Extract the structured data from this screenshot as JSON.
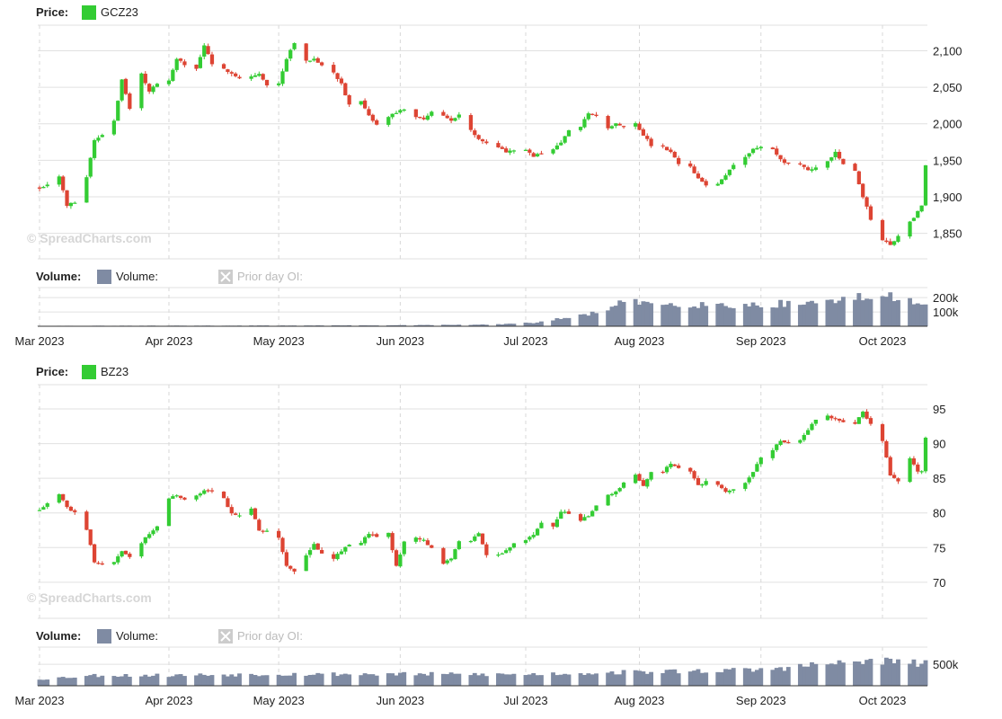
{
  "watermark": "© SpreadCharts.com",
  "labels": {
    "price": "Price:",
    "volume": "Volume:",
    "volume_series": "Volume:",
    "prior_oi": "Prior day OI:"
  },
  "colors": {
    "up": "#33cc33",
    "down": "#dd4433",
    "volume": "#7f8ba3",
    "grid": "#e0e0e0"
  },
  "x_axis": {
    "ticks": [
      "Mar 2023",
      "Apr 2023",
      "May 2023",
      "Jun 2023",
      "Jul 2023",
      "Aug 2023",
      "Sep 2023",
      "Oct 2023"
    ]
  },
  "chart_data": [
    {
      "type": "candlestick",
      "symbol": "GCZ23",
      "x_range": [
        "2023-03-01",
        "2023-10-13"
      ],
      "ylim": [
        1815,
        2135
      ],
      "yticks": [
        "2,100",
        "2,050",
        "2,000",
        "1,950",
        "1,900",
        "1,850"
      ],
      "ytick_values": [
        2100,
        2050,
        2000,
        1950,
        1900,
        1850
      ],
      "volume_ticks": [
        "200k",
        "100k"
      ],
      "volume_tick_values": [
        200000,
        100000
      ],
      "volume_max": 270000,
      "close_anchors": [
        [
          "2023-03-01",
          1912
        ],
        [
          "2023-03-03",
          1918
        ],
        [
          "2023-03-06",
          1928
        ],
        [
          "2023-03-08",
          1888
        ],
        [
          "2023-03-10",
          1893
        ],
        [
          "2023-03-13",
          1928
        ],
        [
          "2023-03-15",
          1978
        ],
        [
          "2023-03-17",
          1985
        ],
        [
          "2023-03-20",
          2005
        ],
        [
          "2023-03-22",
          2060
        ],
        [
          "2023-03-24",
          2020
        ],
        [
          "2023-03-27",
          2068
        ],
        [
          "2023-03-29",
          2045
        ],
        [
          "2023-03-31",
          2055
        ],
        [
          "2023-04-03",
          2058
        ],
        [
          "2023-04-05",
          2090
        ],
        [
          "2023-04-07",
          2080
        ],
        [
          "2023-04-10",
          2075
        ],
        [
          "2023-04-12",
          2108
        ],
        [
          "2023-04-14",
          2080
        ],
        [
          "2023-04-17",
          2075
        ],
        [
          "2023-04-19",
          2070
        ],
        [
          "2023-04-21",
          2062
        ],
        [
          "2023-04-24",
          2065
        ],
        [
          "2023-04-26",
          2068
        ],
        [
          "2023-04-28",
          2052
        ],
        [
          "2023-05-01",
          2055
        ],
        [
          "2023-05-03",
          2090
        ],
        [
          "2023-05-05",
          2112
        ],
        [
          "2023-05-08",
          2085
        ],
        [
          "2023-05-10",
          2090
        ],
        [
          "2023-05-12",
          2080
        ],
        [
          "2023-05-15",
          2070
        ],
        [
          "2023-05-17",
          2055
        ],
        [
          "2023-05-19",
          2025
        ],
        [
          "2023-05-22",
          2030
        ],
        [
          "2023-05-24",
          2010
        ],
        [
          "2023-05-26",
          1998
        ],
        [
          "2023-05-29",
          2010
        ],
        [
          "2023-05-31",
          2015
        ],
        [
          "2023-06-02",
          2020
        ],
        [
          "2023-06-05",
          2010
        ],
        [
          "2023-06-07",
          2005
        ],
        [
          "2023-06-09",
          2018
        ],
        [
          "2023-06-12",
          2010
        ],
        [
          "2023-06-14",
          2005
        ],
        [
          "2023-06-16",
          2012
        ],
        [
          "2023-06-19",
          1990
        ],
        [
          "2023-06-21",
          1980
        ],
        [
          "2023-06-23",
          1975
        ],
        [
          "2023-06-26",
          1968
        ],
        [
          "2023-06-28",
          1962
        ],
        [
          "2023-06-30",
          1965
        ],
        [
          "2023-07-03",
          1965
        ],
        [
          "2023-07-05",
          1955
        ],
        [
          "2023-07-07",
          1960
        ],
        [
          "2023-07-10",
          1965
        ],
        [
          "2023-07-12",
          1975
        ],
        [
          "2023-07-14",
          1990
        ],
        [
          "2023-07-17",
          1995
        ],
        [
          "2023-07-19",
          2015
        ],
        [
          "2023-07-21",
          2010
        ],
        [
          "2023-07-24",
          1995
        ],
        [
          "2023-07-26",
          2000
        ],
        [
          "2023-07-28",
          1998
        ],
        [
          "2023-07-31",
          2000
        ],
        [
          "2023-08-02",
          1985
        ],
        [
          "2023-08-04",
          1970
        ],
        [
          "2023-08-07",
          1968
        ],
        [
          "2023-08-09",
          1960
        ],
        [
          "2023-08-11",
          1945
        ],
        [
          "2023-08-14",
          1940
        ],
        [
          "2023-08-16",
          1925
        ],
        [
          "2023-08-18",
          1915
        ],
        [
          "2023-08-21",
          1918
        ],
        [
          "2023-08-23",
          1930
        ],
        [
          "2023-08-25",
          1945
        ],
        [
          "2023-08-28",
          1955
        ],
        [
          "2023-08-30",
          1965
        ],
        [
          "2023-09-01",
          1968
        ],
        [
          "2023-09-04",
          1965
        ],
        [
          "2023-09-06",
          1950
        ],
        [
          "2023-09-08",
          1945
        ],
        [
          "2023-09-11",
          1945
        ],
        [
          "2023-09-13",
          1935
        ],
        [
          "2023-09-15",
          1940
        ],
        [
          "2023-09-18",
          1950
        ],
        [
          "2023-09-20",
          1960
        ],
        [
          "2023-09-22",
          1945
        ],
        [
          "2023-09-25",
          1935
        ],
        [
          "2023-09-27",
          1900
        ],
        [
          "2023-09-29",
          1870
        ],
        [
          "2023-10-02",
          1840
        ],
        [
          "2023-10-04",
          1835
        ],
        [
          "2023-10-06",
          1845
        ],
        [
          "2023-10-09",
          1865
        ],
        [
          "2023-10-11",
          1880
        ],
        [
          "2023-10-12",
          1888
        ],
        [
          "2023-10-13",
          1942
        ]
      ],
      "volume_anchors": [
        [
          "2023-03-01",
          3000
        ],
        [
          "2023-04-01",
          4000
        ],
        [
          "2023-05-01",
          5000
        ],
        [
          "2023-06-01",
          7000
        ],
        [
          "2023-06-25",
          12000
        ],
        [
          "2023-07-05",
          25000
        ],
        [
          "2023-07-10",
          45000
        ],
        [
          "2023-07-17",
          75000
        ],
        [
          "2023-07-24",
          120000
        ],
        [
          "2023-07-28",
          170000
        ],
        [
          "2023-08-04",
          165000
        ],
        [
          "2023-08-15",
          160000
        ],
        [
          "2023-08-25",
          150000
        ],
        [
          "2023-09-01",
          155000
        ],
        [
          "2023-09-10",
          165000
        ],
        [
          "2023-09-20",
          185000
        ],
        [
          "2023-09-28",
          210000
        ],
        [
          "2023-10-06",
          205000
        ],
        [
          "2023-10-13",
          180000
        ]
      ]
    },
    {
      "type": "candlestick",
      "symbol": "BZ23",
      "x_range": [
        "2023-03-01",
        "2023-10-13"
      ],
      "ylim": [
        64.8,
        98.5
      ],
      "yticks": [
        "95",
        "90",
        "85",
        "80",
        "75",
        "70"
      ],
      "ytick_values": [
        95,
        90,
        85,
        80,
        75,
        70
      ],
      "volume_ticks": [
        "500k"
      ],
      "volume_tick_values": [
        500000
      ],
      "volume_max": 900000,
      "close_anchors": [
        [
          "2023-03-01",
          80.5
        ],
        [
          "2023-03-03",
          81.5
        ],
        [
          "2023-03-06",
          82.8
        ],
        [
          "2023-03-08",
          80.8
        ],
        [
          "2023-03-10",
          80.0
        ],
        [
          "2023-03-13",
          77.5
        ],
        [
          "2023-03-15",
          73.0
        ],
        [
          "2023-03-17",
          72.5
        ],
        [
          "2023-03-20",
          72.8
        ],
        [
          "2023-03-22",
          74.5
        ],
        [
          "2023-03-24",
          73.5
        ],
        [
          "2023-03-27",
          75.8
        ],
        [
          "2023-03-29",
          77.0
        ],
        [
          "2023-03-31",
          78.0
        ],
        [
          "2023-04-03",
          82.0
        ],
        [
          "2023-04-05",
          82.5
        ],
        [
          "2023-04-07",
          82.0
        ],
        [
          "2023-04-10",
          82.5
        ],
        [
          "2023-04-12",
          83.2
        ],
        [
          "2023-04-14",
          83.0
        ],
        [
          "2023-04-17",
          82.0
        ],
        [
          "2023-04-19",
          80.0
        ],
        [
          "2023-04-21",
          79.5
        ],
        [
          "2023-04-24",
          80.5
        ],
        [
          "2023-04-26",
          77.5
        ],
        [
          "2023-04-28",
          77.5
        ],
        [
          "2023-05-01",
          76.5
        ],
        [
          "2023-05-03",
          72.5
        ],
        [
          "2023-05-05",
          71.5
        ],
        [
          "2023-05-08",
          74.0
        ],
        [
          "2023-05-10",
          75.5
        ],
        [
          "2023-05-12",
          74.0
        ],
        [
          "2023-05-15",
          73.5
        ],
        [
          "2023-05-17",
          74.5
        ],
        [
          "2023-05-19",
          75.5
        ],
        [
          "2023-05-22",
          75.8
        ],
        [
          "2023-05-24",
          77.0
        ],
        [
          "2023-05-26",
          76.5
        ],
        [
          "2023-05-29",
          77.0
        ],
        [
          "2023-05-31",
          72.5
        ],
        [
          "2023-06-02",
          75.8
        ],
        [
          "2023-06-05",
          76.5
        ],
        [
          "2023-06-07",
          76.0
        ],
        [
          "2023-06-09",
          75.0
        ],
        [
          "2023-06-12",
          72.5
        ],
        [
          "2023-06-14",
          73.5
        ],
        [
          "2023-06-16",
          76.0
        ],
        [
          "2023-06-19",
          76.0
        ],
        [
          "2023-06-21",
          77.0
        ],
        [
          "2023-06-23",
          74.0
        ],
        [
          "2023-06-26",
          74.0
        ],
        [
          "2023-06-28",
          74.5
        ],
        [
          "2023-06-30",
          75.5
        ],
        [
          "2023-07-03",
          76.0
        ],
        [
          "2023-07-05",
          77.0
        ],
        [
          "2023-07-07",
          78.5
        ],
        [
          "2023-07-10",
          78.0
        ],
        [
          "2023-07-12",
          80.0
        ],
        [
          "2023-07-14",
          80.0
        ],
        [
          "2023-07-17",
          79.0
        ],
        [
          "2023-07-19",
          79.5
        ],
        [
          "2023-07-21",
          81.0
        ],
        [
          "2023-07-24",
          82.5
        ],
        [
          "2023-07-26",
          83.0
        ],
        [
          "2023-07-28",
          84.5
        ],
        [
          "2023-07-31",
          85.5
        ],
        [
          "2023-08-02",
          84.0
        ],
        [
          "2023-08-04",
          86.0
        ],
        [
          "2023-08-07",
          86.0
        ],
        [
          "2023-08-09",
          87.0
        ],
        [
          "2023-08-11",
          86.5
        ],
        [
          "2023-08-14",
          86.0
        ],
        [
          "2023-08-16",
          84.0
        ],
        [
          "2023-08-18",
          84.5
        ],
        [
          "2023-08-21",
          84.0
        ],
        [
          "2023-08-23",
          83.0
        ],
        [
          "2023-08-25",
          83.5
        ],
        [
          "2023-08-28",
          84.5
        ],
        [
          "2023-08-30",
          86.0
        ],
        [
          "2023-09-01",
          88.0
        ],
        [
          "2023-09-04",
          89.0
        ],
        [
          "2023-09-06",
          90.5
        ],
        [
          "2023-09-08",
          90.0
        ],
        [
          "2023-09-11",
          90.5
        ],
        [
          "2023-09-13",
          92.0
        ],
        [
          "2023-09-15",
          93.5
        ],
        [
          "2023-09-18",
          94.0
        ],
        [
          "2023-09-20",
          93.5
        ],
        [
          "2023-09-22",
          93.0
        ],
        [
          "2023-09-25",
          93.0
        ],
        [
          "2023-09-27",
          94.5
        ],
        [
          "2023-09-29",
          93.0
        ],
        [
          "2023-10-02",
          90.5
        ],
        [
          "2023-10-04",
          85.5
        ],
        [
          "2023-10-06",
          84.5
        ],
        [
          "2023-10-09",
          88.0
        ],
        [
          "2023-10-11",
          85.8
        ],
        [
          "2023-10-12",
          86.0
        ],
        [
          "2023-10-13",
          90.9
        ]
      ],
      "volume_anchors": [
        [
          "2023-03-01",
          160000
        ],
        [
          "2023-03-15",
          250000
        ],
        [
          "2023-04-01",
          250000
        ],
        [
          "2023-05-01",
          280000
        ],
        [
          "2023-06-01",
          280000
        ],
        [
          "2023-07-01",
          270000
        ],
        [
          "2023-08-01",
          330000
        ],
        [
          "2023-09-01",
          380000
        ],
        [
          "2023-09-15",
          500000
        ],
        [
          "2023-10-01",
          600000
        ],
        [
          "2023-10-13",
          520000
        ]
      ]
    }
  ]
}
